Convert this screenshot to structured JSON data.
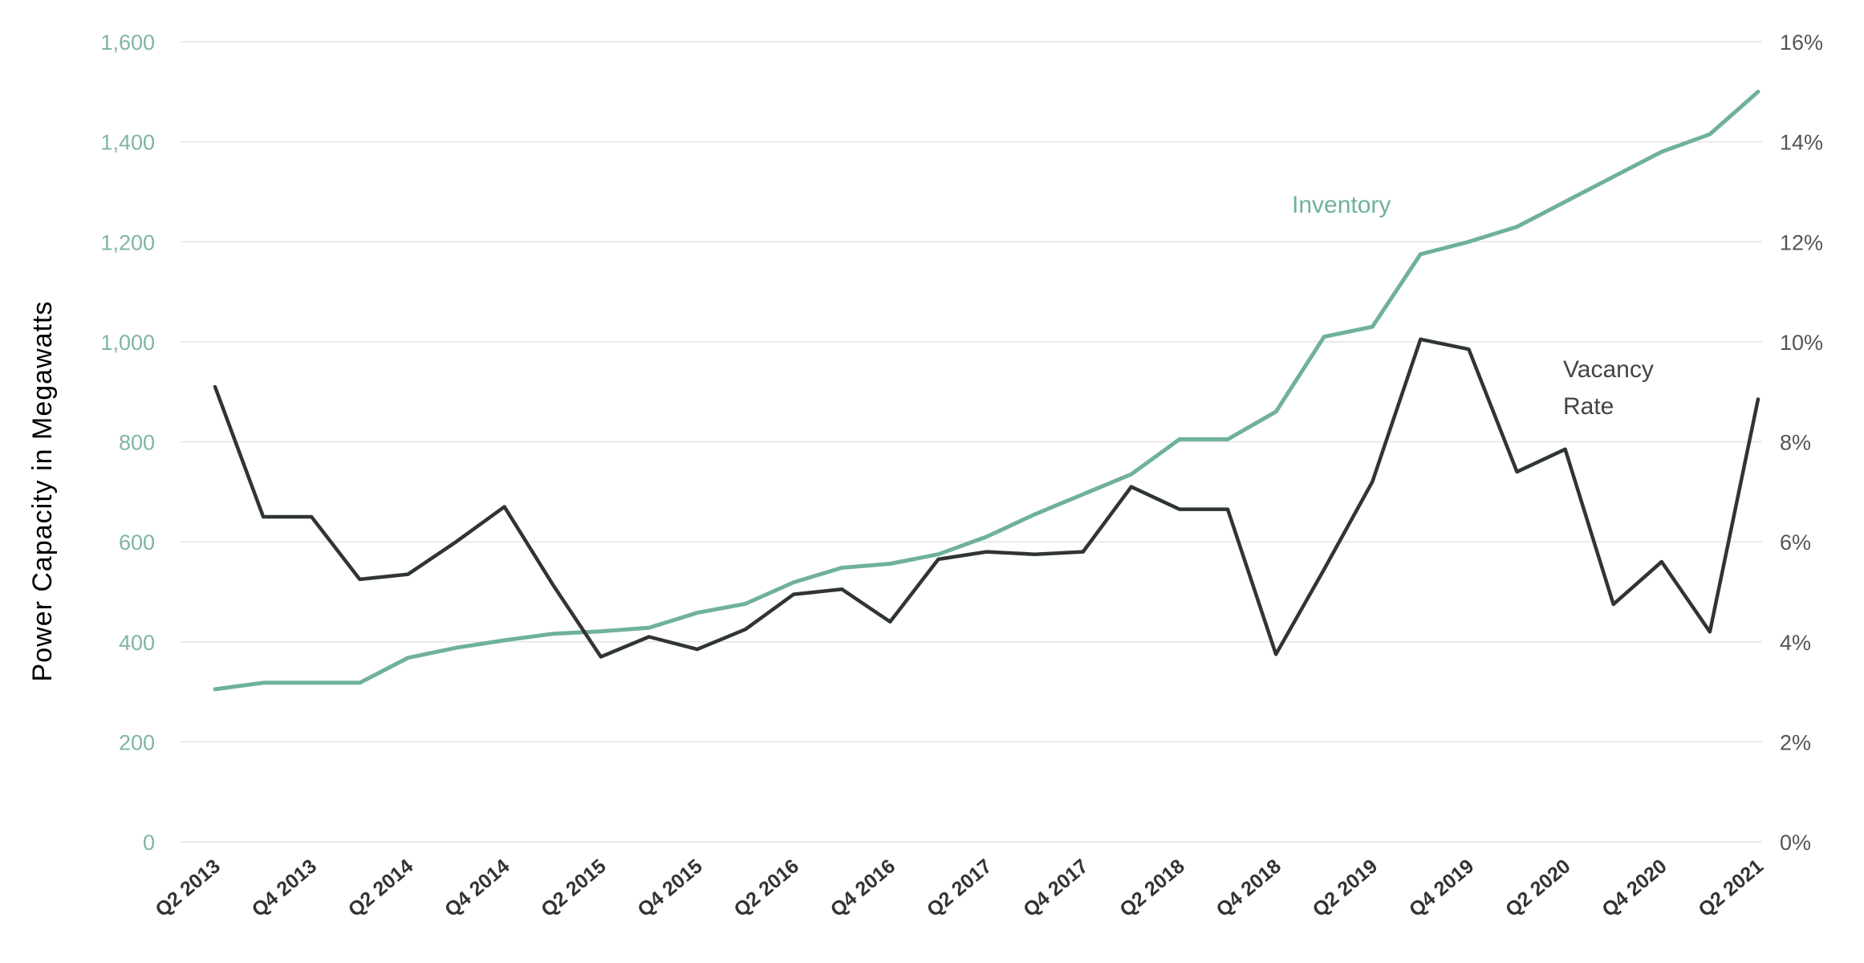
{
  "chart_data": {
    "type": "line",
    "title": "",
    "ylabel": "Power Capacity in Megawatts",
    "ylabel_right": "",
    "xlabel": "",
    "ylim": [
      0,
      1600
    ],
    "ylim_right": [
      0,
      16
    ],
    "colors": {
      "inventory": "#6fb19a",
      "vacancy": "#2f3533",
      "left_ticks": "#7fb5a6",
      "right_ticks": "#555555"
    },
    "y_ticks": [
      {
        "value": 0,
        "label": "0"
      },
      {
        "value": 200,
        "label": "200"
      },
      {
        "value": 400,
        "label": "400"
      },
      {
        "value": 600,
        "label": "600"
      },
      {
        "value": 800,
        "label": "800"
      },
      {
        "value": 1000,
        "label": "1,000"
      },
      {
        "value": 1200,
        "label": "1,200"
      },
      {
        "value": 1400,
        "label": "1,400"
      },
      {
        "value": 1600,
        "label": "1,600"
      }
    ],
    "y_ticks_right": [
      {
        "value": 0,
        "label": "0%"
      },
      {
        "value": 2,
        "label": "2%"
      },
      {
        "value": 4,
        "label": "4%"
      },
      {
        "value": 6,
        "label": "6%"
      },
      {
        "value": 8,
        "label": "8%"
      },
      {
        "value": 10,
        "label": "10%"
      },
      {
        "value": 12,
        "label": "12%"
      },
      {
        "value": 14,
        "label": "14%"
      },
      {
        "value": 16,
        "label": "16%"
      }
    ],
    "categories": [
      "Q2 2013",
      "Q3 2013",
      "Q4 2013",
      "Q1 2014",
      "Q2 2014",
      "Q3 2014",
      "Q4 2014",
      "Q1 2015",
      "Q2 2015",
      "Q3 2015",
      "Q4 2015",
      "Q1 2016",
      "Q2 2016",
      "Q3 2016",
      "Q4 2016",
      "Q1 2017",
      "Q2 2017",
      "Q3 2017",
      "Q4 2017",
      "Q1 2018",
      "Q2 2018",
      "Q3 2018",
      "Q4 2018",
      "Q1 2019",
      "Q2 2019",
      "Q3 2019",
      "Q4 2019",
      "Q1 2020",
      "Q2 2020",
      "Q3 2020",
      "Q4 2020",
      "Q1 2021",
      "Q2 2021"
    ],
    "x_tick_labels": [
      "Q2 2013",
      "Q4 2013",
      "Q2 2014",
      "Q4 2014",
      "Q2 2015",
      "Q4 2015",
      "Q2 2016",
      "Q4 2016",
      "Q2 2017",
      "Q4 2017",
      "Q2 2018",
      "Q4 2018",
      "Q2 2019",
      "Q4 2019",
      "Q2 2020",
      "Q4 2020",
      "Q2 2021"
    ],
    "series": [
      {
        "name": "Inventory",
        "axis": "left",
        "unit": "MW",
        "values": [
          305,
          318,
          318,
          318,
          368,
          388,
          403,
          416,
          421,
          428,
          458,
          476,
          519,
          548,
          556,
          575,
          610,
          655,
          695,
          735,
          805,
          805,
          860,
          1010,
          1030,
          1175,
          1200,
          1230,
          1280,
          1330,
          1380,
          1415,
          1500
        ]
      },
      {
        "name": "Vacancy Rate",
        "axis": "right",
        "unit": "%",
        "values": [
          9.1,
          6.5,
          6.5,
          5.25,
          5.35,
          6.0,
          6.7,
          5.15,
          3.7,
          4.1,
          3.85,
          4.25,
          4.95,
          5.05,
          4.4,
          5.65,
          5.8,
          5.75,
          5.8,
          7.1,
          6.65,
          6.65,
          3.75,
          5.45,
          7.2,
          10.05,
          9.85,
          7.4,
          7.85,
          4.75,
          5.6,
          4.2,
          8.85
        ]
      }
    ],
    "annotations": {
      "inventory": "Inventory",
      "vacancy_line1": "Vacancy",
      "vacancy_line2": "Rate"
    }
  }
}
